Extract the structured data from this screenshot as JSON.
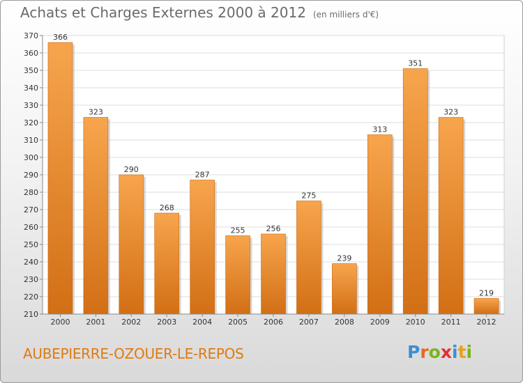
{
  "title": "Achats et Charges Externes 2000 à 2012",
  "subtitle": "(en milliers d'€)",
  "commune": "AUBEPIERRE-OZOUER-LE-REPOS",
  "logo": {
    "text": "Proxiti",
    "letters": [
      "P",
      "r",
      "o",
      "x",
      "i",
      "t",
      "i"
    ],
    "colors": [
      "#3a8fd6",
      "#e86a1c",
      "#7ab51d",
      "#e03030",
      "#3a8fd6",
      "#e8a01c",
      "#7ab51d"
    ]
  },
  "colors": {
    "bar": "#f29a3c",
    "bar_dark": "#d9741a",
    "text": "#6a6a6a",
    "accent": "#e07a10"
  },
  "chart_data": {
    "type": "bar",
    "title": "Achats et Charges Externes 2000 à 2012",
    "subtitle": "(en milliers d'€)",
    "categories": [
      "2000",
      "2001",
      "2002",
      "2003",
      "2004",
      "2005",
      "2006",
      "2007",
      "2008",
      "2009",
      "2010",
      "2011",
      "2012"
    ],
    "values": [
      366,
      323,
      290,
      268,
      287,
      255,
      256,
      275,
      239,
      313,
      351,
      323,
      219
    ],
    "ylim": [
      210,
      370
    ],
    "yticks": [
      210,
      220,
      230,
      240,
      250,
      260,
      270,
      280,
      290,
      300,
      310,
      320,
      330,
      340,
      350,
      360,
      370
    ],
    "grid": true,
    "xlabel": "",
    "ylabel": ""
  }
}
